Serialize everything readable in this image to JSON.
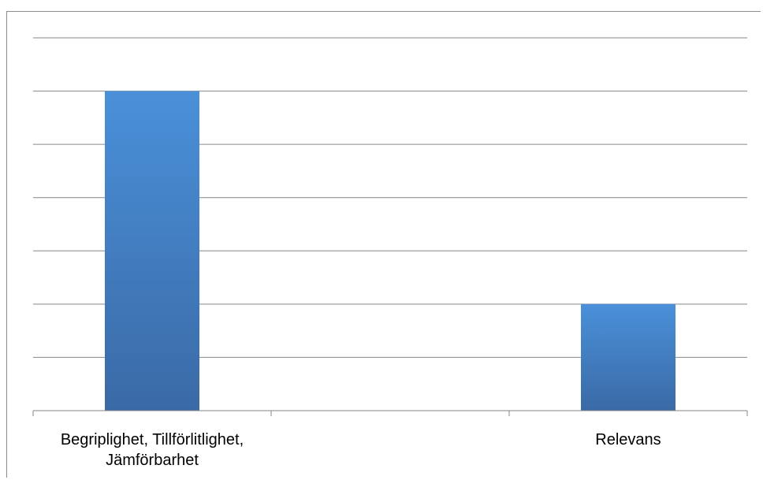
{
  "chart_data": {
    "type": "bar",
    "categories": [
      "Begriplighet, Tillförlitlighet,\nJämförbarhet",
      "",
      "Relevans"
    ],
    "values": [
      6,
      0,
      2
    ],
    "title": "",
    "xlabel": "",
    "ylabel": "",
    "ylim": [
      0,
      7
    ],
    "grid": true,
    "legend": "none",
    "bar_color_top": "#4a90d9",
    "bar_color_bottom": "#3a6aa6",
    "gridline_color": "#868686",
    "axis_color": "#868686"
  }
}
